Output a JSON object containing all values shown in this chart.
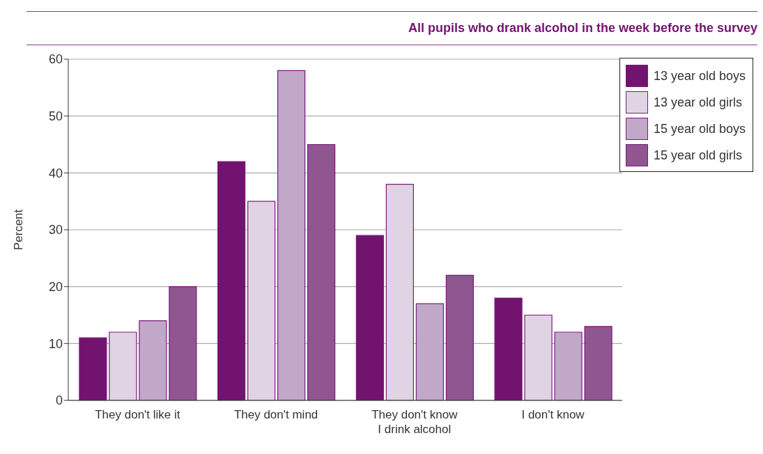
{
  "chart_data": {
    "type": "bar",
    "subtitle": "All pupils who drank alcohol in the week before the survey",
    "ylabel": "Percent",
    "categories": [
      "They don't like it",
      "They don't mind",
      "They don't know\nI drink alcohol",
      "I don't know"
    ],
    "series": [
      {
        "name": "13 year old boys",
        "color": "#731370",
        "values": [
          11,
          42,
          29,
          18
        ]
      },
      {
        "name": "13 year old girls",
        "color": "#e0d4e4",
        "values": [
          12,
          35,
          38,
          15
        ]
      },
      {
        "name": "15 year old boys",
        "color": "#c1a8c9",
        "values": [
          14,
          58,
          17,
          12
        ]
      },
      {
        "name": "15 year old girls",
        "color": "#8f5690",
        "values": [
          20,
          45,
          22,
          13
        ]
      }
    ],
    "ylim": [
      0,
      60
    ],
    "yticks": [
      0,
      10,
      20,
      30,
      40,
      50,
      60
    ],
    "grid": "y",
    "legend": "top right"
  }
}
